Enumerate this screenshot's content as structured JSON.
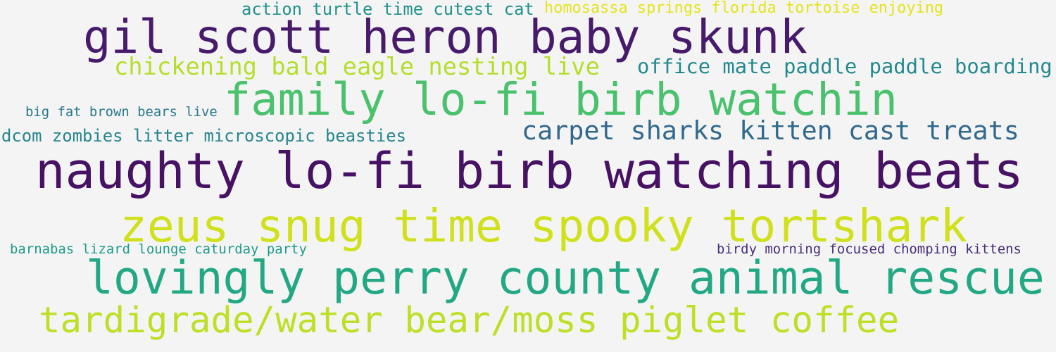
{
  "words": [
    {
      "text": "action turtle time cutest cat",
      "color": "#21918c"
    },
    {
      "text": "homosassa springs florida tortoise enjoying",
      "color": "#e5e419"
    },
    {
      "text": "gil scott heron baby skunk",
      "color": "#481a6c"
    },
    {
      "text": "chickening bald eagle nesting live",
      "color": "#b5de2b"
    },
    {
      "text": "office mate paddle paddle boarding",
      "color": "#23898e"
    },
    {
      "text": "family lo-fi birb watchin",
      "color": "#4ac16d"
    },
    {
      "text": "big fat brown bears live",
      "color": "#2a788e"
    },
    {
      "text": "dcom zombies litter microscopic beasties",
      "color": "#25858e"
    },
    {
      "text": "carpet sharks kitten cast treats",
      "color": "#31688e"
    },
    {
      "text": "naughty lo-fi birb watching beats",
      "color": "#471164"
    },
    {
      "text": "zeus snug time spooky tortshark",
      "color": "#d0e11c"
    },
    {
      "text": "barnabas lizard lounge caturday party",
      "color": "#1f9a8a"
    },
    {
      "text": "birdy morning focused chomping kittens",
      "color": "#472d7b"
    },
    {
      "text": "lovingly perry county animal rescue",
      "color": "#22a884"
    },
    {
      "text": "tardigrade/water bear/moss piglet coffee",
      "color": "#bddf26"
    }
  ]
}
